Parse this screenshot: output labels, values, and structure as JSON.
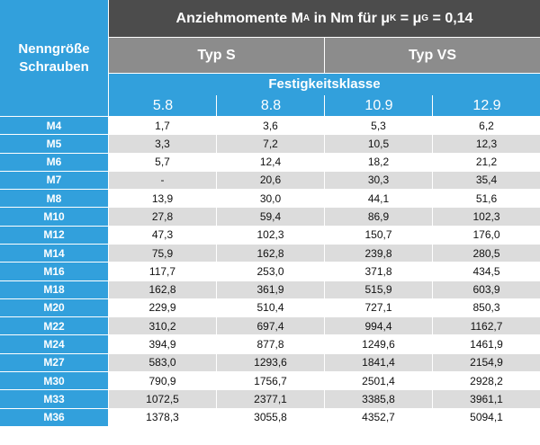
{
  "header": {
    "left_line1": "Nenngröße",
    "left_line2": "Schrauben",
    "title_prefix": "Anziehmomente M",
    "title_sub_a": "A",
    "title_mid": " in Nm für μ",
    "title_sub_k": "K",
    "title_eq": " = μ",
    "title_sub_g": "G",
    "title_suffix": " = 0,14",
    "typ_s": "Typ S",
    "typ_vs": "Typ VS",
    "festigkeitsklasse": "Festigkeitsklasse",
    "klassen": [
      "5.8",
      "8.8",
      "10.9",
      "12.9"
    ]
  },
  "colors": {
    "blue": "#32a0dc",
    "dark_gray": "#4c4c4c",
    "mid_gray": "#8c8c8c",
    "row_alt": "#dcdcdc"
  },
  "rows": [
    {
      "size": "M4",
      "v": [
        "1,7",
        "3,6",
        "5,3",
        "6,2"
      ]
    },
    {
      "size": "M5",
      "v": [
        "3,3",
        "7,2",
        "10,5",
        "12,3"
      ]
    },
    {
      "size": "M6",
      "v": [
        "5,7",
        "12,4",
        "18,2",
        "21,2"
      ]
    },
    {
      "size": "M7",
      "v": [
        "-",
        "20,6",
        "30,3",
        "35,4"
      ]
    },
    {
      "size": "M8",
      "v": [
        "13,9",
        "30,0",
        "44,1",
        "51,6"
      ]
    },
    {
      "size": "M10",
      "v": [
        "27,8",
        "59,4",
        "86,9",
        "102,3"
      ]
    },
    {
      "size": "M12",
      "v": [
        "47,3",
        "102,3",
        "150,7",
        "176,0"
      ]
    },
    {
      "size": "M14",
      "v": [
        "75,9",
        "162,8",
        "239,8",
        "280,5"
      ]
    },
    {
      "size": "M16",
      "v": [
        "117,7",
        "253,0",
        "371,8",
        "434,5"
      ]
    },
    {
      "size": "M18",
      "v": [
        "162,8",
        "361,9",
        "515,9",
        "603,9"
      ]
    },
    {
      "size": "M20",
      "v": [
        "229,9",
        "510,4",
        "727,1",
        "850,3"
      ]
    },
    {
      "size": "M22",
      "v": [
        "310,2",
        "697,4",
        "994,4",
        "1162,7"
      ]
    },
    {
      "size": "M24",
      "v": [
        "394,9",
        "877,8",
        "1249,6",
        "1461,9"
      ]
    },
    {
      "size": "M27",
      "v": [
        "583,0",
        "1293,6",
        "1841,4",
        "2154,9"
      ]
    },
    {
      "size": "M30",
      "v": [
        "790,9",
        "1756,7",
        "2501,4",
        "2928,2"
      ]
    },
    {
      "size": "M33",
      "v": [
        "1072,5",
        "2377,1",
        "3385,8",
        "3961,1"
      ]
    },
    {
      "size": "M36",
      "v": [
        "1378,3",
        "3055,8",
        "4352,7",
        "5094,1"
      ]
    }
  ]
}
